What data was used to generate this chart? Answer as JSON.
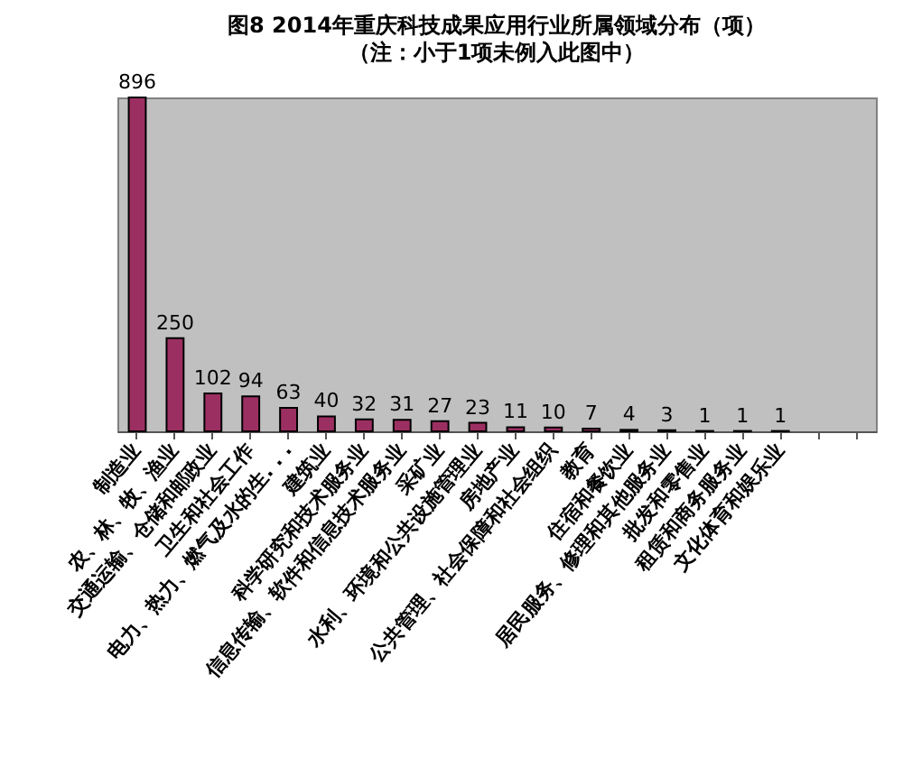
{
  "chart_data": {
    "type": "bar",
    "title": "图8 2014年重庆科技成果应用行业所属领域分布（项）",
    "subtitle": "（注：小于1项未例入此图中）",
    "categories": [
      "制造业",
      "农、林、牧、渔业",
      "交通运输、仓储和邮政业",
      "卫生和社会工作",
      "电力、热力、燃气及水的生. . .",
      "建筑业",
      "科学研究和技术服务业",
      "信息传输、软件和信息技术服务业",
      "采矿业",
      "水利、环境和公共设施管理业",
      "房地产业",
      "公共管理、社会保障和社会组织",
      "教育",
      "住宿和餐饮业",
      "居民服务、修理和其他服务业",
      "批发和零售业",
      "租赁和商务服务业",
      "文化体育和娱乐业",
      null,
      null
    ],
    "values": [
      896,
      250,
      102,
      94,
      63,
      40,
      32,
      31,
      27,
      23,
      11,
      10,
      7,
      4,
      3,
      1,
      1,
      1,
      null,
      null
    ],
    "color": "#9c2f62",
    "data_labels": true
  }
}
